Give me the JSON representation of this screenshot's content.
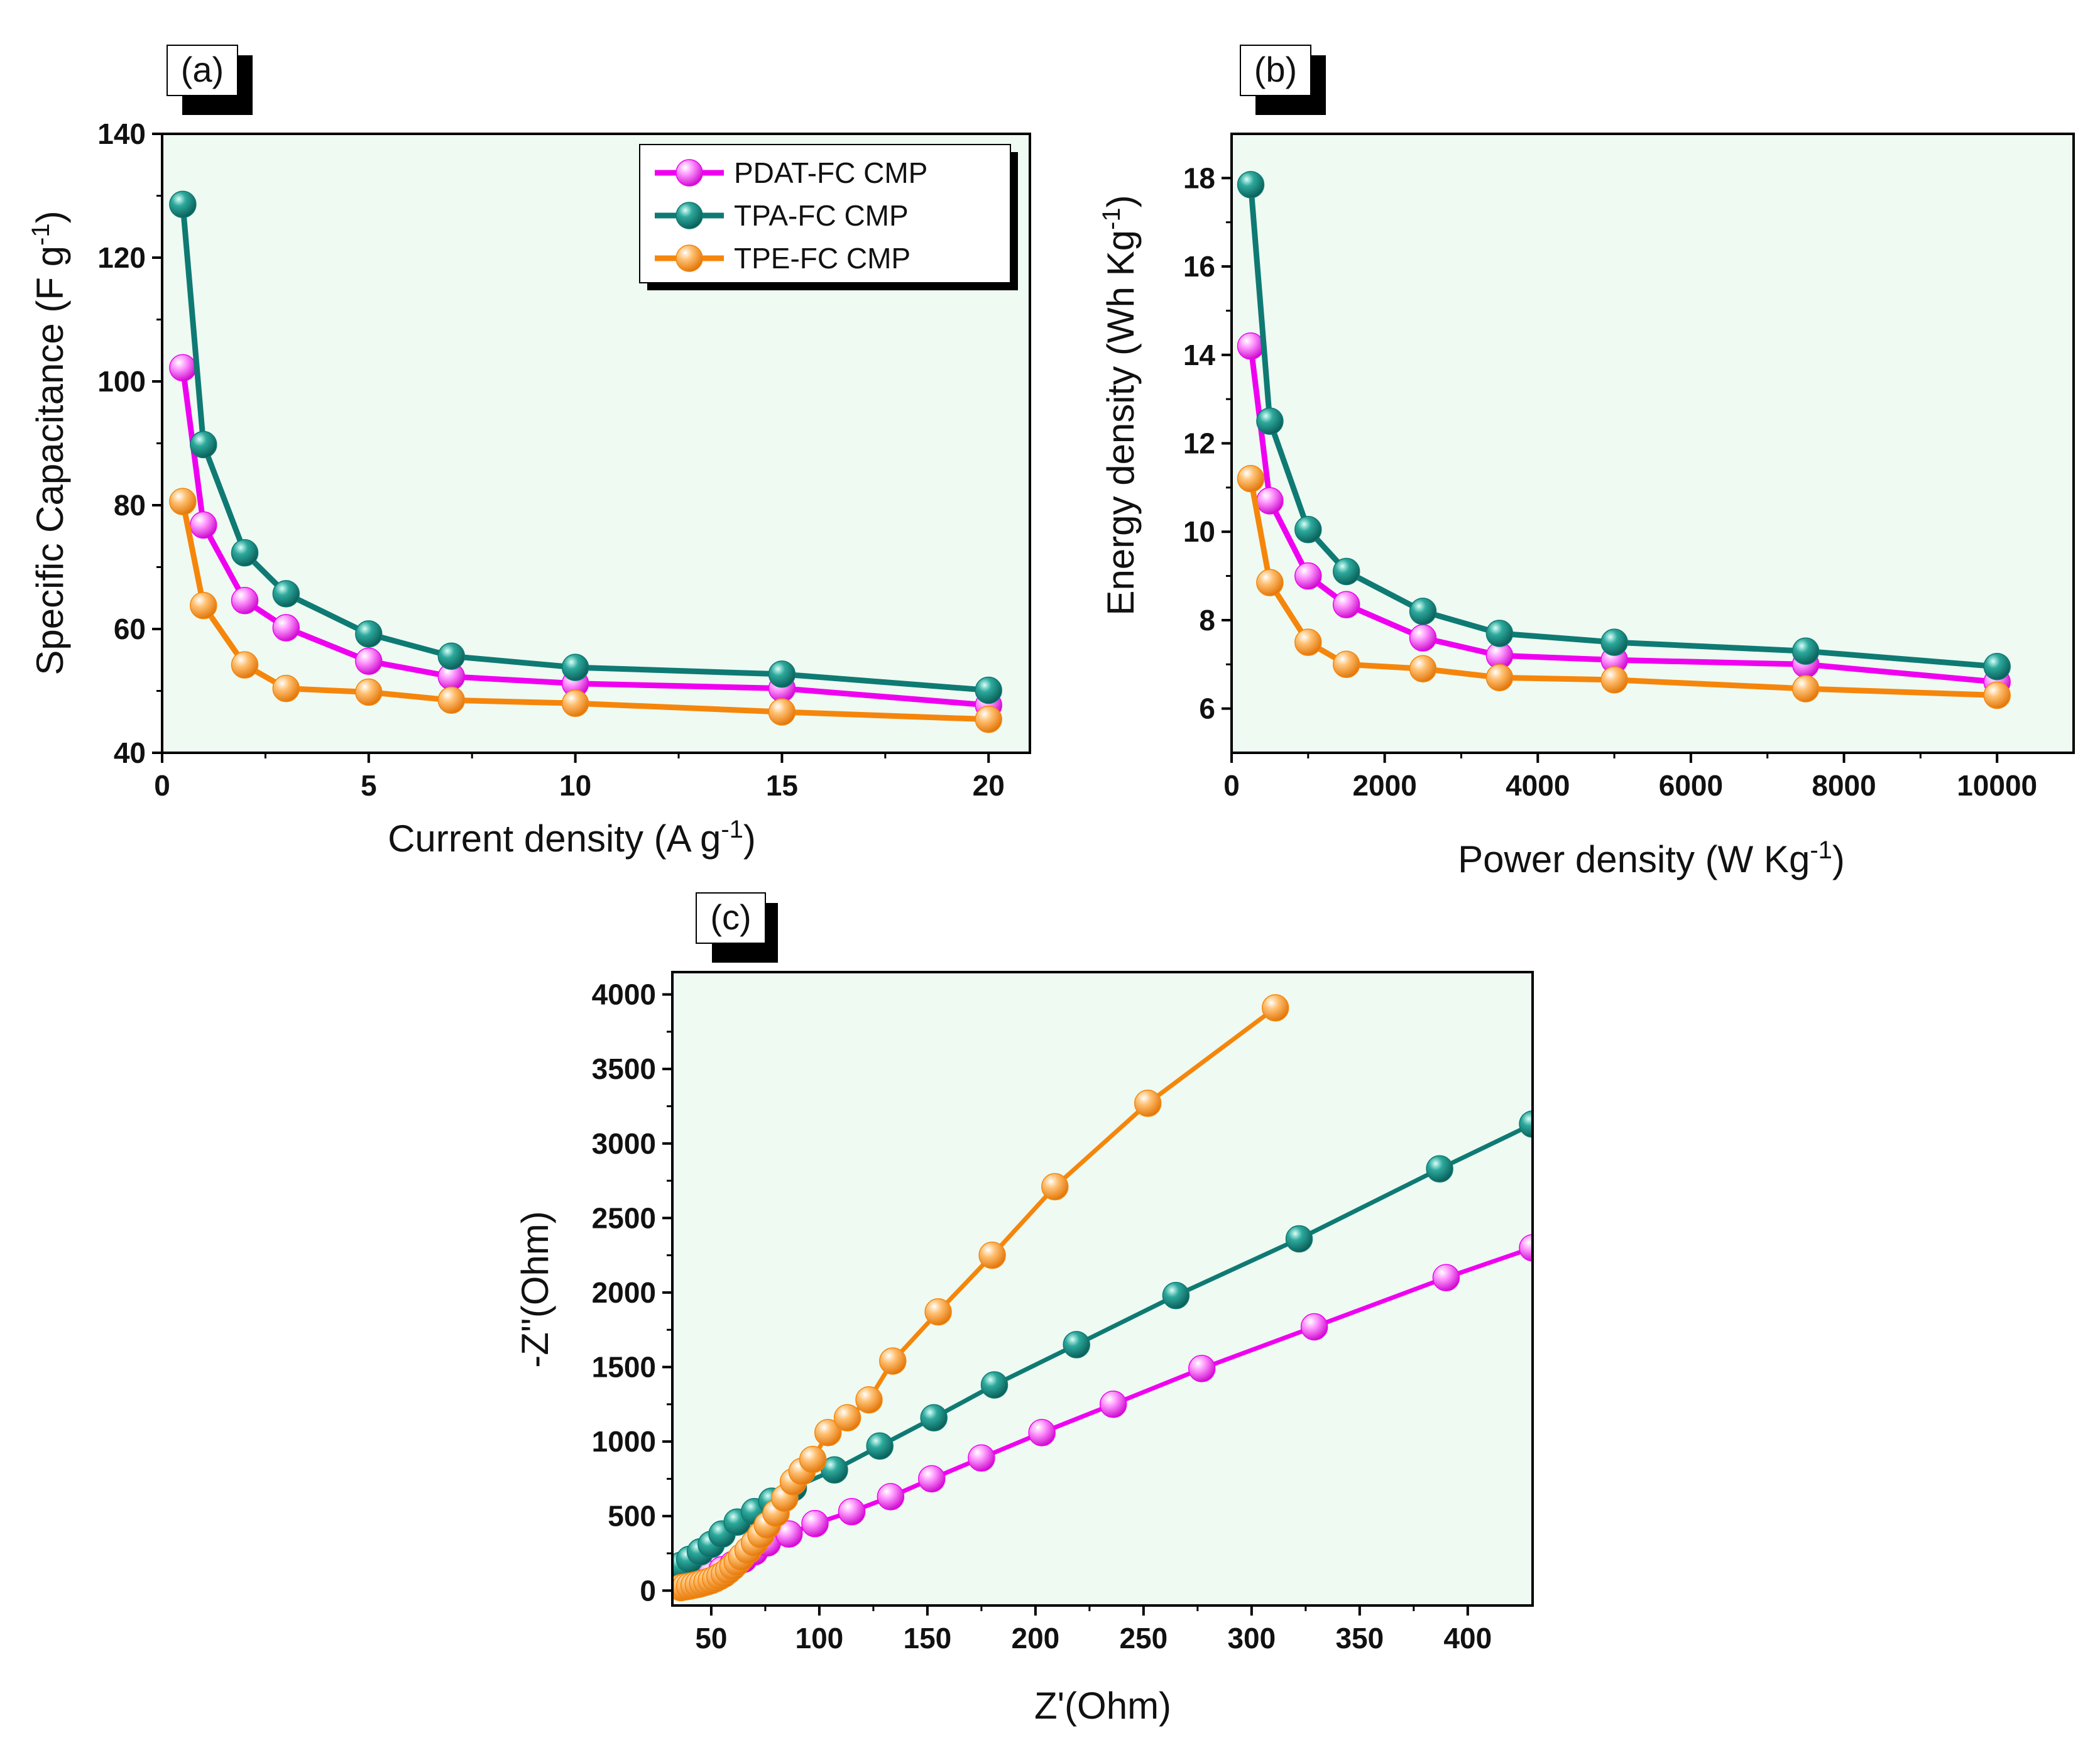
{
  "figure": {
    "colors": {
      "background": "#EEFAF2",
      "PDAT-FC CMP": "#F000F0",
      "TPA-FC CMP": "#0E7A73",
      "TPE-FC CMP": "#F5860B"
    }
  },
  "chart_data": [
    {
      "panel": "(a)",
      "type": "line",
      "xlabel": "Current density (A g",
      "xlabel_sup": "-1",
      "xlabel_end": ")",
      "ylabel": "Specific Capacitance (F g",
      "ylabel_sup": "-1",
      "ylabel_end": ")",
      "xlim": [
        0,
        21
      ],
      "ylim": [
        40,
        140
      ],
      "xticks": [
        0,
        5,
        10,
        15,
        20
      ],
      "yticks": [
        40,
        60,
        80,
        100,
        120,
        140
      ],
      "legend": [
        "PDAT-FC CMP",
        "TPA-FC CMP",
        "TPE-FC CMP"
      ],
      "legend_position": "top-right",
      "series": [
        {
          "name": "PDAT-FC CMP",
          "x": [
            0.5,
            1,
            2,
            3,
            5,
            7,
            10,
            15,
            20
          ],
          "y": [
            102.2,
            76.8,
            64.6,
            60.2,
            54.8,
            52.3,
            51.2,
            50.4,
            47.7
          ]
        },
        {
          "name": "TPA-FC CMP",
          "x": [
            0.5,
            1,
            2,
            3,
            5,
            7,
            10,
            15,
            20
          ],
          "y": [
            128.6,
            89.8,
            72.3,
            65.7,
            59.2,
            55.6,
            53.8,
            52.7,
            50.1
          ]
        },
        {
          "name": "TPE-FC CMP",
          "x": [
            0.5,
            1,
            2,
            3,
            5,
            7,
            10,
            15,
            20
          ],
          "y": [
            80.6,
            63.8,
            54.2,
            50.4,
            49.8,
            48.5,
            48.0,
            46.6,
            45.4
          ]
        }
      ]
    },
    {
      "panel": "(b)",
      "type": "line",
      "xlabel": "Power density (W Kg",
      "xlabel_sup": "-1",
      "xlabel_end": ")",
      "ylabel": "Energy density (Wh Kg",
      "ylabel_sup": "-1",
      "ylabel_end": ")",
      "xlim": [
        0,
        11000
      ],
      "ylim": [
        5,
        19
      ],
      "xticks": [
        0,
        2000,
        4000,
        6000,
        8000,
        10000
      ],
      "yticks": [
        6,
        8,
        10,
        12,
        14,
        16,
        18
      ],
      "series": [
        {
          "name": "PDAT-FC CMP",
          "x": [
            250,
            500,
            1000,
            1500,
            2500,
            3500,
            5000,
            7500,
            10000
          ],
          "y": [
            14.2,
            10.7,
            9.0,
            8.35,
            7.6,
            7.2,
            7.1,
            7.0,
            6.6
          ]
        },
        {
          "name": "TPA-FC CMP",
          "x": [
            250,
            500,
            1000,
            1500,
            2500,
            3500,
            5000,
            7500,
            10000
          ],
          "y": [
            17.85,
            12.5,
            10.05,
            9.1,
            8.2,
            7.7,
            7.5,
            7.3,
            6.95
          ]
        },
        {
          "name": "TPE-FC CMP",
          "x": [
            250,
            500,
            1000,
            1500,
            2500,
            3500,
            5000,
            7500,
            10000
          ],
          "y": [
            11.2,
            8.85,
            7.5,
            7.0,
            6.9,
            6.7,
            6.65,
            6.45,
            6.3
          ]
        }
      ]
    },
    {
      "panel": "(c)",
      "type": "line",
      "xlabel": "Z'(Ohm)",
      "ylabel": "-Z''(Ohm)",
      "xlim": [
        32,
        430
      ],
      "ylim": [
        -100,
        4150
      ],
      "xticks": [
        50,
        100,
        150,
        200,
        250,
        300,
        350,
        400
      ],
      "yticks": [
        0,
        500,
        1000,
        1500,
        2000,
        2500,
        3000,
        3500,
        4000
      ],
      "series": [
        {
          "name": "PDAT-FC CMP",
          "x": [
            36,
            40,
            45,
            50,
            55,
            60,
            65,
            70,
            76,
            86,
            98,
            115,
            133,
            152,
            175,
            203,
            236,
            277,
            329,
            390,
            430
          ],
          "y": [
            40,
            60,
            85,
            110,
            140,
            175,
            210,
            260,
            320,
            380,
            450,
            530,
            630,
            750,
            890,
            1060,
            1250,
            1490,
            1770,
            2100,
            2300
          ]
        },
        {
          "name": "TPA-FC CMP",
          "x": [
            36,
            40,
            45,
            50,
            55,
            62,
            70,
            78,
            88,
            107,
            128,
            153,
            181,
            219,
            265,
            322,
            387,
            430
          ],
          "y": [
            170,
            210,
            260,
            310,
            380,
            460,
            530,
            600,
            690,
            810,
            970,
            1160,
            1380,
            1650,
            1980,
            2360,
            2830,
            3130
          ]
        },
        {
          "name": "TPE-FC CMP",
          "x": [
            36,
            38,
            40,
            42,
            44,
            46,
            48,
            50,
            52,
            54,
            56,
            58,
            60,
            62,
            64,
            67,
            70,
            73,
            76,
            80,
            84,
            88,
            92,
            97,
            104,
            113,
            123,
            134,
            155,
            180,
            209,
            252,
            311
          ],
          "y": [
            20,
            25,
            30,
            36,
            42,
            50,
            58,
            68,
            80,
            95,
            112,
            135,
            160,
            190,
            225,
            270,
            320,
            375,
            440,
            520,
            620,
            730,
            800,
            880,
            1060,
            1160,
            1280,
            1540,
            1870,
            2250,
            2710,
            3270,
            3910
          ]
        }
      ]
    }
  ]
}
